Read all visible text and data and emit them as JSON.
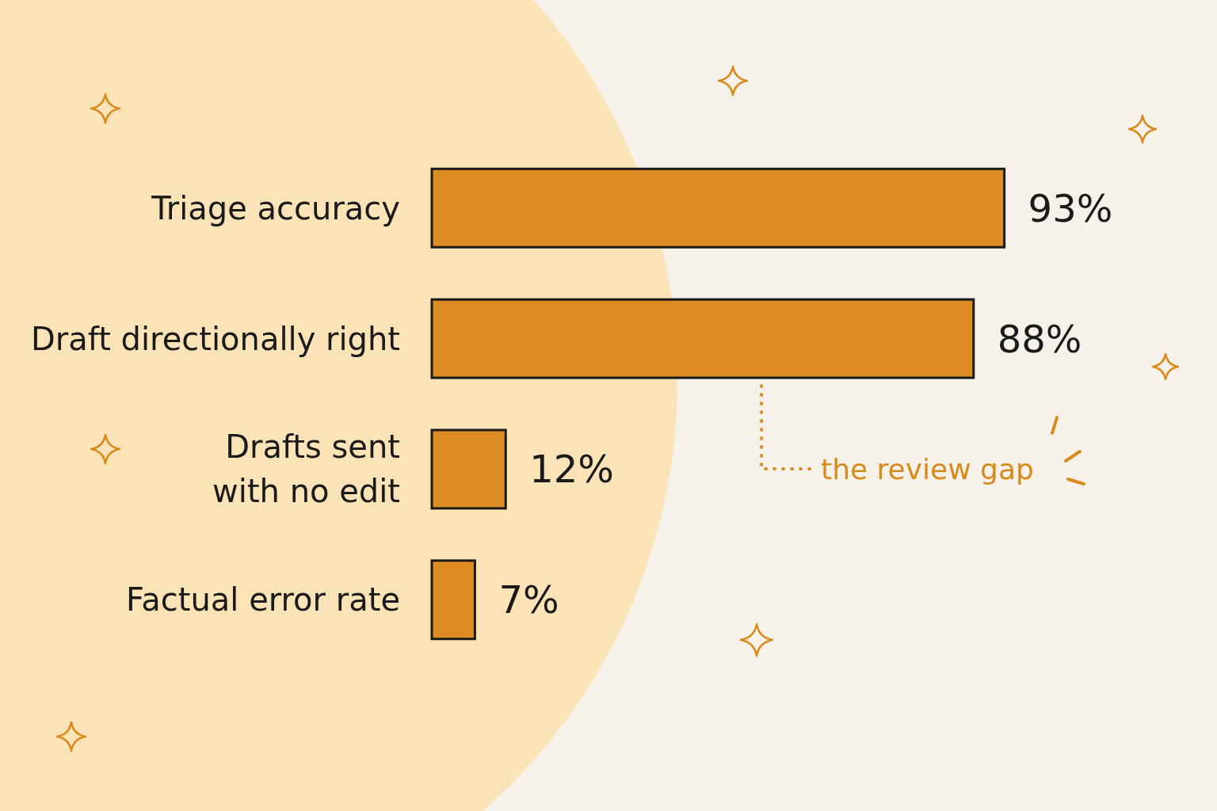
{
  "chart_data": {
    "type": "bar",
    "orientation": "horizontal",
    "categories": [
      "Triage accuracy",
      "Draft directionally right",
      "Drafts sent\nwith no edit",
      "Factual error rate"
    ],
    "values": [
      93,
      88,
      12,
      7
    ],
    "color": "#dc8c22",
    "value_labels": [
      "93%",
      "88%",
      "12%",
      "7%"
    ],
    "tick_labels": "y",
    "annotations": [
      "the review gap"
    ]
  }
}
